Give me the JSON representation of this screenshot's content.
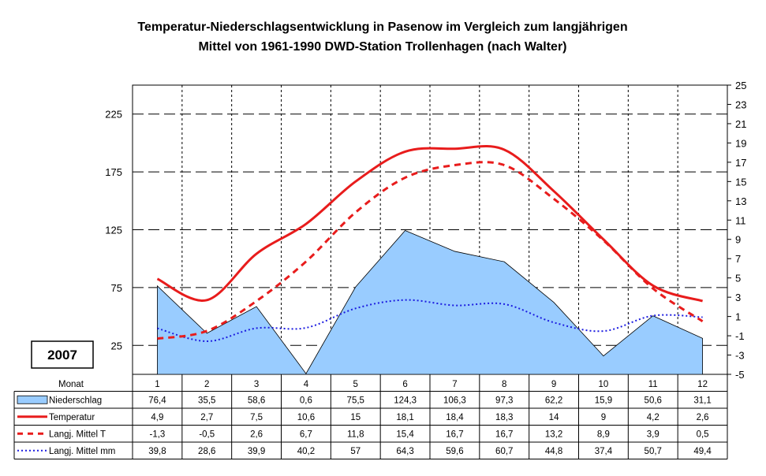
{
  "chart_data": {
    "type": "line",
    "title": [
      "Temperatur-Niederschlagsentwicklung in Pasenow im Vergleich zum langjährigen",
      "Mittel von 1961-1990 DWD-Station Trollenhagen (nach Walter)"
    ],
    "year_label": "2007",
    "categories": [
      "1",
      "2",
      "3",
      "4",
      "5",
      "6",
      "7",
      "8",
      "9",
      "10",
      "11",
      "12"
    ],
    "table_header": "Monat",
    "y_left": {
      "ticks": [
        "225",
        "175",
        "125",
        "75",
        "25"
      ],
      "range": [
        0,
        250
      ]
    },
    "y_right": {
      "ticks": [
        "25",
        "23",
        "21",
        "19",
        "17",
        "15",
        "13",
        "11",
        "9",
        "7",
        "5",
        "3",
        "1",
        "-1",
        "-3",
        "-5"
      ],
      "range": [
        -5,
        25
      ]
    },
    "grid": true,
    "legend_placement": "table-below",
    "series": [
      {
        "name": "Niederschlag",
        "kind": "area",
        "axis": "left",
        "color": "#99ccff",
        "values": [
          76.4,
          35.5,
          58.6,
          0.6,
          75.5,
          124.3,
          106.3,
          97.3,
          62.2,
          15.9,
          50.6,
          31.1
        ],
        "labels": [
          "76,4",
          "35,5",
          "58,6",
          "0,6",
          "75,5",
          "124,3",
          "106,3",
          "97,3",
          "62,2",
          "15,9",
          "50,6",
          "31,1"
        ]
      },
      {
        "name": "Temperatur",
        "kind": "solid-line",
        "axis": "right",
        "color": "#e81c1c",
        "values": [
          4.9,
          2.7,
          7.5,
          10.6,
          15,
          18.1,
          18.4,
          18.3,
          14,
          9,
          4.2,
          2.6
        ],
        "labels": [
          "4,9",
          "2,7",
          "7,5",
          "10,6",
          "15",
          "18,1",
          "18,4",
          "18,3",
          "14",
          "9",
          "4,2",
          "2,6"
        ]
      },
      {
        "name": "Langj. Mittel T",
        "kind": "dashed-line",
        "axis": "right",
        "color": "#e81c1c",
        "values": [
          -1.3,
          -0.5,
          2.6,
          6.7,
          11.8,
          15.4,
          16.7,
          16.7,
          13.2,
          8.9,
          3.9,
          0.5
        ],
        "labels": [
          "-1,3",
          "-0,5",
          "2,6",
          "6,7",
          "11,8",
          "15,4",
          "16,7",
          "16,7",
          "13,2",
          "8,9",
          "3,9",
          "0,5"
        ]
      },
      {
        "name": "Langj. Mittel mm",
        "kind": "dotted-line",
        "axis": "left",
        "color": "#1c1ce0",
        "values": [
          39.8,
          28.6,
          39.9,
          40.2,
          57,
          64.3,
          59.6,
          60.7,
          44.8,
          37.4,
          50.7,
          49.4
        ],
        "labels": [
          "39,8",
          "28,6",
          "39,9",
          "40,2",
          "57",
          "64,3",
          "59,6",
          "60,7",
          "44,8",
          "37,4",
          "50,7",
          "49,4"
        ]
      }
    ]
  }
}
